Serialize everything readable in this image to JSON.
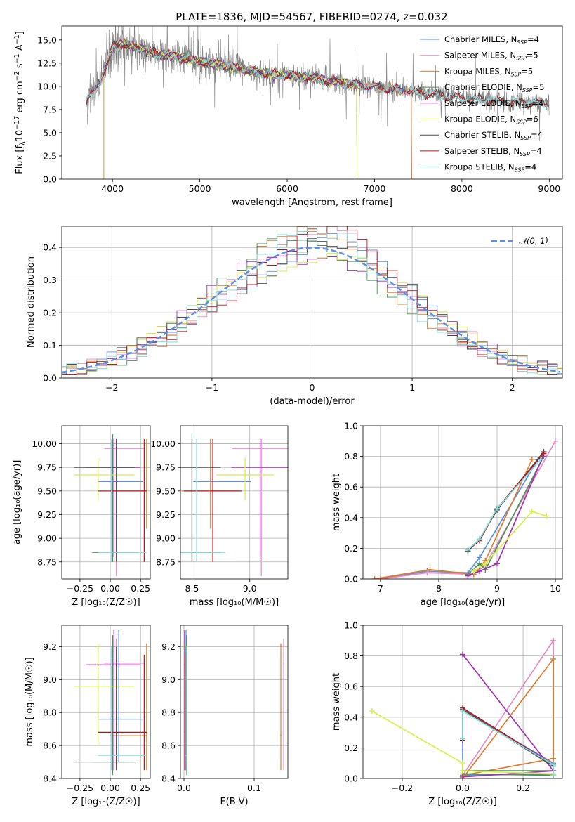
{
  "figure": {
    "title": "PLATE=1836, MJD=54567, FIBERID=0274, z=0.032"
  },
  "colors": {
    "chabrier_miles": "#5b8ee6",
    "salpeter_miles": "#e88bc4",
    "kroupa_miles": "#e07c2c",
    "chabrier_elodie": "#4f8f58",
    "salpeter_elodie": "#a32fb3",
    "kroupa_elodie": "#d9ef48",
    "chabrier_stelib": "#4d4d4d",
    "salpeter_stelib": "#b5181c",
    "kroupa_stelib": "#7fdde0",
    "data": "#808080",
    "normal": "#5b8ee6"
  },
  "chart_data": [
    {
      "id": "spectrum",
      "type": "line",
      "xlabel": "wavelength [Angstrom, rest frame]",
      "ylabel": "Flux [f_λ 10^-17 erg cm^-2 s^-1 A^-1]",
      "ylabel_parts": {
        "a": "Flux [f",
        "b": "λ",
        "c": "10",
        "d": "−17",
        "e": " erg cm",
        "f": "−2",
        "g": " s",
        "h": "−1",
        "i": " A",
        "j": "−1",
        "k": "]"
      },
      "xlim": [
        3420,
        9150
      ],
      "ylim": [
        0,
        16.5
      ],
      "xticks": [
        4000,
        5000,
        6000,
        7000,
        8000,
        9000
      ],
      "yticks": [
        0.0,
        2.5,
        5.0,
        7.5,
        10.0,
        12.5,
        15.0
      ],
      "xtick_labels": [
        "4000",
        "5000",
        "6000",
        "7000",
        "8000",
        "9000"
      ],
      "ytick_labels": [
        "0.0",
        "2.5",
        "5.0",
        "7.5",
        "10.0",
        "12.5",
        "15.0"
      ],
      "legend_position": "top-right",
      "legend": [
        {
          "label": "Chabrier MILES, N",
          "sub": "SSP",
          "suffix": "=4",
          "color_key": "chabrier_miles"
        },
        {
          "label": "Salpeter MILES, N",
          "sub": "SSP",
          "suffix": "=5",
          "color_key": "salpeter_miles"
        },
        {
          "label": "Kroupa MILES, N",
          "sub": "SSP",
          "suffix": "=5",
          "color_key": "kroupa_miles"
        },
        {
          "label": "Chabrier ELODIE, N",
          "sub": "SSP",
          "suffix": "=5",
          "color_key": "chabrier_elodie"
        },
        {
          "label": "Salpeter ELODIE, N",
          "sub": "SSP",
          "suffix": "=4",
          "color_key": "salpeter_elodie"
        },
        {
          "label": "Kroupa ELODIE, N",
          "sub": "SSP",
          "suffix": "=6",
          "color_key": "kroupa_elodie"
        },
        {
          "label": "Chabrier STELIB, N",
          "sub": "SSP",
          "suffix": "=4",
          "color_key": "chabrier_stelib"
        },
        {
          "label": "Salpeter STELIB, N",
          "sub": "SSP",
          "suffix": "=4",
          "color_key": "salpeter_stelib"
        },
        {
          "label": "Kroupa STELIB, N",
          "sub": "SSP",
          "suffix": "=4",
          "color_key": "kroupa_stelib"
        }
      ],
      "continuum": [
        [
          3700,
          8.3
        ],
        [
          3800,
          9.5
        ],
        [
          3900,
          11.5
        ],
        [
          4000,
          14.2
        ],
        [
          4100,
          14.6
        ],
        [
          4300,
          14.2
        ],
        [
          4500,
          13.5
        ],
        [
          4700,
          13.3
        ],
        [
          4900,
          12.8
        ],
        [
          5200,
          12.4
        ],
        [
          5500,
          11.8
        ],
        [
          5800,
          11.3
        ],
        [
          6100,
          11.1
        ],
        [
          6300,
          10.9
        ],
        [
          6500,
          10.6
        ],
        [
          6700,
          10.3
        ],
        [
          6900,
          10.1
        ],
        [
          7100,
          9.8
        ],
        [
          7400,
          9.5
        ],
        [
          7700,
          9.1
        ],
        [
          8000,
          8.8
        ],
        [
          8300,
          8.5
        ],
        [
          8600,
          8.3
        ],
        [
          9000,
          8.1
        ]
      ],
      "model_ranges": {
        "chabrier_miles": [
          3700,
          7420
        ],
        "salpeter_miles": [
          3700,
          7420
        ],
        "kroupa_miles": [
          3700,
          7420
        ],
        "chabrier_elodie": [
          3900,
          6800
        ],
        "salpeter_elodie": [
          3900,
          6800
        ],
        "kroupa_elodie": [
          3900,
          6800
        ],
        "chabrier_stelib": [
          3700,
          9000
        ],
        "salpeter_stelib": [
          3700,
          9000
        ],
        "kroupa_stelib": [
          3700,
          9000
        ]
      }
    },
    {
      "id": "residuals",
      "type": "bar",
      "xlabel": "(data-model)/error",
      "ylabel": "Normed distribution",
      "xlim": [
        -2.5,
        2.5
      ],
      "ylim": [
        0,
        0.465
      ],
      "xticks": [
        -2,
        -1,
        0,
        1,
        2
      ],
      "yticks": [
        0.0,
        0.1,
        0.2,
        0.3,
        0.4
      ],
      "xtick_labels": [
        "−2",
        "−1",
        "0",
        "1",
        "2"
      ],
      "ytick_labels": [
        "0.0",
        "0.1",
        "0.2",
        "0.3",
        "0.4"
      ],
      "grid": true,
      "legend_position": "top-right",
      "legend": [
        {
          "label": "𝒩(0, 1)",
          "color_key": "normal"
        }
      ],
      "bin_width": 0.1
    },
    {
      "id": "age_vs_Z",
      "type": "scatter",
      "xlabel": "Z [log₁₀(Z/Z☉)]",
      "ylabel": "age  [log₁₀(age/yr)]",
      "xlim": [
        -0.4,
        0.33
      ],
      "ylim": [
        8.57,
        10.19
      ],
      "xticks": [
        -0.25,
        0.0,
        0.25
      ],
      "yticks": [
        8.75,
        9.0,
        9.25,
        9.5,
        9.75,
        10.0
      ],
      "xtick_labels": [
        "−0.25",
        "0.00",
        "0.25"
      ],
      "ytick_labels": [
        "8.75",
        "9.00",
        "9.25",
        "9.50",
        "9.75",
        "10.00"
      ],
      "grid": true
    },
    {
      "id": "age_vs_mass",
      "type": "scatter",
      "xlabel": "mass [log₁₀(M/M☉)]",
      "ylabel": "",
      "xlim": [
        8.4,
        9.33
      ],
      "ylim": [
        8.57,
        10.19
      ],
      "xticks": [
        8.5,
        9.0
      ],
      "yticks": [
        8.75,
        9.0,
        9.25,
        9.5,
        9.75,
        10.0
      ],
      "xtick_labels": [
        "8.5",
        "9.0"
      ],
      "ytick_labels": [
        "8.75",
        "9.00",
        "9.25",
        "9.50",
        "9.75",
        "10.00"
      ],
      "grid": true
    },
    {
      "id": "weight_vs_age",
      "type": "line",
      "xlabel": "age  [log₁₀(age/yr)]",
      "ylabel": "mass weight",
      "xlim": [
        6.7,
        10.12
      ],
      "ylim": [
        0,
        1.0
      ],
      "xticks": [
        7,
        8,
        9,
        10
      ],
      "yticks": [
        0.0,
        0.2,
        0.4,
        0.6,
        0.8,
        1.0
      ],
      "xtick_labels": [
        "7",
        "8",
        "9",
        "10"
      ],
      "ytick_labels": [
        "0.0",
        "0.2",
        "0.4",
        "0.6",
        "0.8",
        "1.0"
      ],
      "grid": true
    },
    {
      "id": "mass_vs_Z",
      "type": "scatter",
      "xlabel": "Z [log₁₀(Z/Z☉)]",
      "ylabel": "mass [log₁₀(M/M☉)]",
      "xlim": [
        -0.4,
        0.33
      ],
      "ylim": [
        8.4,
        9.33
      ],
      "xticks": [
        -0.25,
        0.0,
        0.25
      ],
      "yticks": [
        8.4,
        8.6,
        8.8,
        9.0,
        9.2
      ],
      "xtick_labels": [
        "−0.25",
        "0.00",
        "0.25"
      ],
      "ytick_labels": [
        "8.4",
        "8.6",
        "8.8",
        "9.0",
        "9.2"
      ],
      "grid": true
    },
    {
      "id": "mass_vs_ebv",
      "type": "scatter",
      "xlabel": "E(B-V)",
      "ylabel": "",
      "xlim": [
        -0.005,
        0.148
      ],
      "ylim": [
        8.4,
        9.33
      ],
      "xticks": [
        0.0,
        0.1
      ],
      "yticks": [
        8.4,
        8.6,
        8.8,
        9.0,
        9.2
      ],
      "xtick_labels": [
        "0.0",
        "0.1"
      ],
      "ytick_labels": [
        "8.4",
        "8.6",
        "8.8",
        "9.0",
        "9.2"
      ],
      "grid": true
    },
    {
      "id": "weight_vs_Z",
      "type": "line",
      "xlabel": "Z [log₁₀(Z/Z☉)]",
      "ylabel": "mass weight",
      "xlim": [
        -0.33,
        0.33
      ],
      "ylim": [
        0,
        1.0
      ],
      "xticks": [
        -0.2,
        0.0,
        0.2
      ],
      "yticks": [
        0.0,
        0.2,
        0.4,
        0.6,
        0.8,
        1.0
      ],
      "xtick_labels": [
        "−0.2",
        "0.0",
        "0.2"
      ],
      "ytick_labels": [
        "0.0",
        "0.2",
        "0.4",
        "0.6",
        "0.8",
        "1.0"
      ],
      "grid": true
    }
  ],
  "fits": [
    {
      "key": "chabrier_miles",
      "age": 9.6,
      "age_err": [
        9.6,
        9.6
      ],
      "Z": 0.07,
      "Z_err": [
        -0.1,
        0.27
      ],
      "mass": 8.76,
      "mass_err": [
        8.5,
        9.3
      ],
      "ebv": 0.003,
      "sfh": [
        [
          7.0,
          0.0
        ],
        [
          7.8,
          0.05
        ],
        [
          8.5,
          0.04
        ],
        [
          8.7,
          0.14
        ],
        [
          9.7,
          0.78
        ]
      ],
      "zw": [
        [
          0.0,
          0.0
        ],
        [
          0.0,
          0.45
        ],
        [
          0.3,
          0.1
        ],
        [
          0.3,
          0.03
        ],
        [
          0.0,
          0.02
        ]
      ]
    },
    {
      "key": "salpeter_miles",
      "age": 9.95,
      "age_err": [
        8.6,
        10.05
      ],
      "Z": 0.05,
      "Z_err": [
        -0.05,
        0.28
      ],
      "mass": 9.1,
      "mass_err": [
        8.45,
        9.25
      ],
      "ebv": 0.142,
      "sfh": [
        [
          7.0,
          0.0
        ],
        [
          7.8,
          0.04
        ],
        [
          8.6,
          0.03
        ],
        [
          8.8,
          0.09
        ],
        [
          10.0,
          0.9
        ]
      ],
      "zw": [
        [
          0.0,
          0.0
        ],
        [
          0.0,
          0.02
        ],
        [
          0.3,
          0.9
        ],
        [
          0.3,
          0.03
        ]
      ]
    },
    {
      "key": "kroupa_miles",
      "age": 9.5,
      "age_err": [
        9.1,
        10.05
      ],
      "Z": 0.3,
      "Z_err": [
        0.0,
        0.3
      ],
      "mass": 8.66,
      "mass_err": [
        8.45,
        9.22
      ],
      "ebv": 0.138,
      "sfh": [
        [
          6.9,
          0.0
        ],
        [
          7.85,
          0.06
        ],
        [
          8.6,
          0.03
        ],
        [
          8.8,
          0.12
        ],
        [
          9.6,
          0.78
        ]
      ],
      "zw": [
        [
          0.0,
          0.0
        ],
        [
          0.3,
          0.78
        ],
        [
          0.3,
          0.13
        ],
        [
          0.0,
          0.02
        ]
      ]
    },
    {
      "key": "chabrier_elodie",
      "age": 8.85,
      "age_err": [
        8.75,
        10.1
      ],
      "Z": 0.02,
      "Z_err": [
        -0.15,
        0.23
      ],
      "mass": 8.5,
      "mass_err": [
        8.42,
        9.27
      ],
      "ebv": 0.004,
      "sfh": [
        [
          8.5,
          0.03
        ],
        [
          8.7,
          0.1
        ],
        [
          8.8,
          0.06
        ],
        [
          9.8,
          0.8
        ]
      ],
      "zw": [
        [
          0.0,
          0.05
        ],
        [
          0.3,
          0.05
        ],
        [
          0.3,
          0.02
        ],
        [
          0.0,
          0.03
        ]
      ]
    },
    {
      "key": "salpeter_elodie",
      "age": 9.75,
      "age_err": [
        8.8,
        10.05
      ],
      "Z": 0.03,
      "Z_err": [
        -0.2,
        0.25
      ],
      "mass": 9.09,
      "mass_err": [
        8.45,
        9.3
      ],
      "ebv": 0.001,
      "sfh": [
        [
          8.5,
          0.02
        ],
        [
          8.7,
          0.05
        ],
        [
          9.0,
          0.1
        ],
        [
          9.8,
          0.81
        ]
      ],
      "zw": [
        [
          0.0,
          0.81
        ],
        [
          0.3,
          0.05
        ],
        [
          0.0,
          0.01
        ]
      ]
    },
    {
      "key": "kroupa_elodie",
      "age": 9.67,
      "age_err": [
        9.4,
        9.85
      ],
      "Z": -0.1,
      "Z_err": [
        -0.3,
        0.2
      ],
      "mass": 8.96,
      "mass_err": [
        8.6,
        9.22
      ],
      "ebv": 0.002,
      "sfh": [
        [
          8.6,
          0.05
        ],
        [
          8.8,
          0.1
        ],
        [
          9.6,
          0.44
        ],
        [
          9.85,
          0.41
        ]
      ],
      "zw": [
        [
          -0.3,
          0.44
        ],
        [
          0.0,
          0.1
        ],
        [
          0.0,
          0.05
        ],
        [
          0.3,
          0.03
        ]
      ]
    },
    {
      "key": "chabrier_stelib",
      "age": 9.75,
      "age_err": [
        8.75,
        10.05
      ],
      "Z": 0.05,
      "Z_err": [
        -0.3,
        0.2
      ],
      "mass": 8.5,
      "mass_err": [
        8.45,
        9.2
      ],
      "ebv": 0.002,
      "sfh": [
        [
          8.5,
          0.18
        ],
        [
          8.7,
          0.26
        ],
        [
          9.0,
          0.45
        ],
        [
          9.8,
          0.83
        ]
      ],
      "zw": [
        [
          0.0,
          0.26
        ],
        [
          0.0,
          0.45
        ],
        [
          0.3,
          0.08
        ],
        [
          0.3,
          0.02
        ]
      ]
    },
    {
      "key": "salpeter_stelib",
      "age": 9.5,
      "age_err": [
        8.75,
        10.05
      ],
      "Z": 0.28,
      "Z_err": [
        -0.1,
        0.3
      ],
      "mass": 8.68,
      "mass_err": [
        8.45,
        9.15
      ],
      "ebv": 0.002,
      "sfh": [
        [
          8.5,
          0.19
        ],
        [
          8.7,
          0.25
        ],
        [
          9.0,
          0.46
        ],
        [
          9.8,
          0.82
        ]
      ],
      "zw": [
        [
          0.0,
          0.25
        ],
        [
          0.0,
          0.46
        ],
        [
          0.3,
          0.09
        ],
        [
          0.3,
          0.02
        ]
      ]
    },
    {
      "key": "kroupa_stelib",
      "age": 8.85,
      "age_err": [
        8.75,
        10.05
      ],
      "Z": 0.01,
      "Z_err": [
        -0.1,
        0.3
      ],
      "mass": 8.54,
      "mass_err": [
        8.45,
        9.2
      ],
      "ebv": 0.003,
      "sfh": [
        [
          8.5,
          0.19
        ],
        [
          8.7,
          0.26
        ],
        [
          9.0,
          0.46
        ],
        [
          9.75,
          0.78
        ]
      ],
      "zw": [
        [
          0.0,
          0.26
        ],
        [
          0.0,
          0.44
        ],
        [
          0.3,
          0.09
        ],
        [
          0.3,
          0.02
        ]
      ]
    }
  ]
}
